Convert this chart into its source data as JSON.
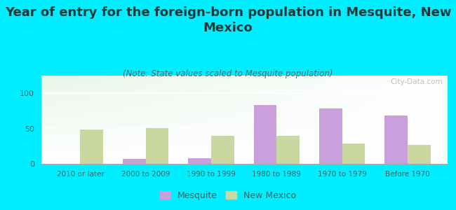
{
  "title": "Year of entry for the foreign-born population in Mesquite, New\nMexico",
  "subtitle": "(Note: State values scaled to Mesquite population)",
  "categories": [
    "2010 or later",
    "2000 to 2009",
    "1990 to 1999",
    "1980 to 1989",
    "1970 to 1979",
    "Before 1970"
  ],
  "mesquite_values": [
    0,
    7,
    8,
    83,
    78,
    68
  ],
  "new_mexico_values": [
    49,
    51,
    40,
    40,
    29,
    27
  ],
  "mesquite_color": "#c9a0dc",
  "new_mexico_color": "#c8d8a0",
  "background_color": "#00eeff",
  "title_color": "#1a3a3a",
  "subtitle_color": "#4a6a6a",
  "title_fontsize": 13,
  "subtitle_fontsize": 8.5,
  "ylim": [
    0,
    125
  ],
  "yticks": [
    0,
    50,
    100
  ],
  "bar_width": 0.35,
  "watermark": "City-Data.com"
}
